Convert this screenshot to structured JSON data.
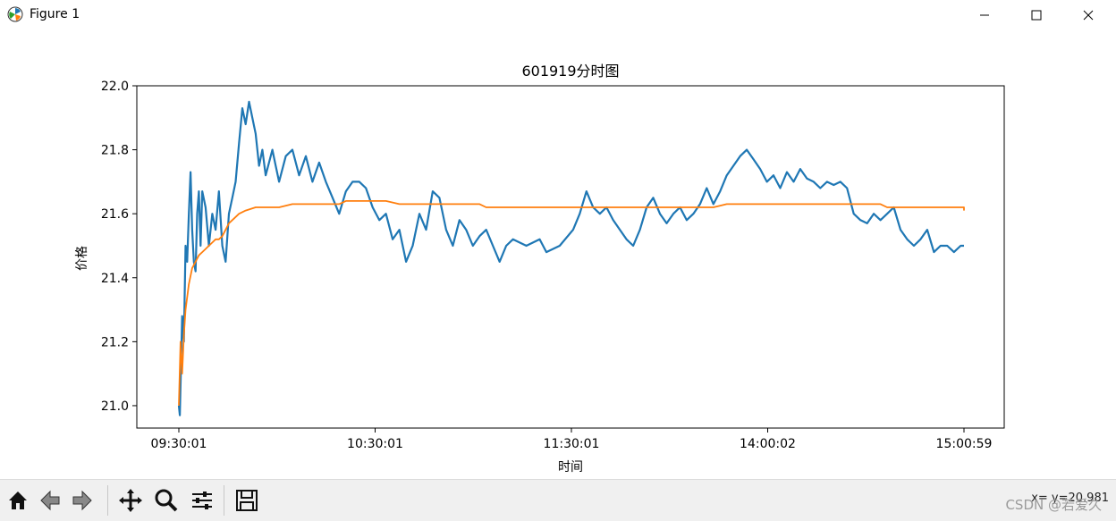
{
  "window": {
    "title": "Figure 1",
    "icon": "matplotlib-icon"
  },
  "window_controls": [
    "minimize-icon",
    "maximize-icon",
    "close-icon"
  ],
  "toolbar": {
    "buttons": [
      "home-icon",
      "back-icon",
      "forward-icon",
      "pan-icon",
      "zoom-icon",
      "configure-subplots-icon",
      "save-icon"
    ],
    "coordinate_readout": "x=      y=20.981"
  },
  "watermark": "CSDN @若爱久",
  "colors": {
    "series1": "#1f77b4",
    "series2": "#ff7f0e",
    "toolbar_bg": "#f0f0f0"
  },
  "chart_data": {
    "type": "line",
    "title": "601919分时图",
    "xlabel": "时间",
    "ylabel": "价格",
    "x_ticks": [
      "09:30:01",
      "10:30:01",
      "11:30:01",
      "14:00:02",
      "15:00:59"
    ],
    "y_ticks": [
      "21.0",
      "21.2",
      "21.4",
      "21.6",
      "21.8",
      "22.0"
    ],
    "ylim": [
      20.93,
      22.0
    ],
    "grid": false,
    "legend": "none",
    "series": [
      {
        "points": [
          [
            0,
            21.0
          ],
          [
            0.3,
            20.97
          ],
          [
            0.6,
            21.1
          ],
          [
            1,
            21.28
          ],
          [
            1.5,
            21.2
          ],
          [
            2,
            21.5
          ],
          [
            2.5,
            21.45
          ],
          [
            3,
            21.6
          ],
          [
            3.5,
            21.73
          ],
          [
            4,
            21.55
          ],
          [
            4.5,
            21.45
          ],
          [
            5,
            21.42
          ],
          [
            5.5,
            21.6
          ],
          [
            6,
            21.67
          ],
          [
            6.5,
            21.5
          ],
          [
            7,
            21.67
          ],
          [
            8,
            21.62
          ],
          [
            9,
            21.5
          ],
          [
            10,
            21.6
          ],
          [
            11,
            21.55
          ],
          [
            12,
            21.67
          ],
          [
            13,
            21.5
          ],
          [
            14,
            21.45
          ],
          [
            15,
            21.6
          ],
          [
            16,
            21.65
          ],
          [
            17,
            21.7
          ],
          [
            18,
            21.82
          ],
          [
            19,
            21.93
          ],
          [
            20,
            21.88
          ],
          [
            21,
            21.95
          ],
          [
            22,
            21.9
          ],
          [
            23,
            21.85
          ],
          [
            24,
            21.75
          ],
          [
            25,
            21.8
          ],
          [
            26,
            21.72
          ],
          [
            28,
            21.8
          ],
          [
            29,
            21.75
          ],
          [
            30,
            21.7
          ],
          [
            32,
            21.78
          ],
          [
            34,
            21.8
          ],
          [
            36,
            21.72
          ],
          [
            38,
            21.78
          ],
          [
            40,
            21.7
          ],
          [
            42,
            21.76
          ],
          [
            44,
            21.7
          ],
          [
            46,
            21.65
          ],
          [
            48,
            21.6
          ],
          [
            50,
            21.67
          ],
          [
            52,
            21.7
          ],
          [
            54,
            21.7
          ],
          [
            56,
            21.68
          ],
          [
            58,
            21.62
          ],
          [
            60,
            21.58
          ],
          [
            62,
            21.6
          ],
          [
            64,
            21.52
          ],
          [
            66,
            21.55
          ],
          [
            68,
            21.45
          ],
          [
            70,
            21.5
          ],
          [
            72,
            21.6
          ],
          [
            74,
            21.55
          ],
          [
            76,
            21.67
          ],
          [
            78,
            21.65
          ],
          [
            80,
            21.55
          ],
          [
            82,
            21.5
          ],
          [
            84,
            21.58
          ],
          [
            86,
            21.55
          ],
          [
            88,
            21.5
          ],
          [
            90,
            21.53
          ],
          [
            92,
            21.55
          ],
          [
            94,
            21.5
          ],
          [
            96,
            21.45
          ],
          [
            98,
            21.5
          ],
          [
            100,
            21.52
          ],
          [
            104,
            21.5
          ],
          [
            108,
            21.52
          ],
          [
            110,
            21.48
          ],
          [
            114,
            21.5
          ],
          [
            118,
            21.55
          ],
          [
            120,
            21.6
          ],
          [
            122,
            21.67
          ],
          [
            124,
            21.62
          ],
          [
            126,
            21.6
          ],
          [
            128,
            21.62
          ],
          [
            130,
            21.58
          ],
          [
            132,
            21.55
          ],
          [
            134,
            21.52
          ],
          [
            136,
            21.5
          ],
          [
            138,
            21.55
          ],
          [
            140,
            21.62
          ],
          [
            142,
            21.65
          ],
          [
            144,
            21.6
          ],
          [
            146,
            21.57
          ],
          [
            148,
            21.6
          ],
          [
            150,
            21.62
          ],
          [
            152,
            21.58
          ],
          [
            154,
            21.6
          ],
          [
            156,
            21.63
          ],
          [
            158,
            21.68
          ],
          [
            160,
            21.63
          ],
          [
            162,
            21.67
          ],
          [
            164,
            21.72
          ],
          [
            166,
            21.75
          ],
          [
            168,
            21.78
          ],
          [
            170,
            21.8
          ],
          [
            172,
            21.77
          ],
          [
            174,
            21.74
          ],
          [
            176,
            21.7
          ],
          [
            178,
            21.72
          ],
          [
            180,
            21.68
          ],
          [
            182,
            21.73
          ],
          [
            184,
            21.7
          ],
          [
            186,
            21.74
          ],
          [
            188,
            21.71
          ],
          [
            190,
            21.7
          ],
          [
            192,
            21.68
          ],
          [
            194,
            21.7
          ],
          [
            196,
            21.69
          ],
          [
            198,
            21.7
          ],
          [
            200,
            21.68
          ],
          [
            202,
            21.6
          ],
          [
            204,
            21.58
          ],
          [
            206,
            21.57
          ],
          [
            208,
            21.6
          ],
          [
            210,
            21.58
          ],
          [
            212,
            21.6
          ],
          [
            214,
            21.62
          ],
          [
            216,
            21.55
          ],
          [
            218,
            21.52
          ],
          [
            220,
            21.5
          ],
          [
            222,
            21.52
          ],
          [
            224,
            21.55
          ],
          [
            226,
            21.48
          ],
          [
            228,
            21.5
          ],
          [
            230,
            21.5
          ],
          [
            232,
            21.48
          ],
          [
            234,
            21.5
          ],
          [
            235,
            21.5
          ]
        ]
      },
      {
        "points": [
          [
            0,
            21.0
          ],
          [
            0.5,
            21.2
          ],
          [
            1,
            21.1
          ],
          [
            1.5,
            21.22
          ],
          [
            2,
            21.3
          ],
          [
            3,
            21.38
          ],
          [
            4,
            21.43
          ],
          [
            5,
            21.45
          ],
          [
            6,
            21.47
          ],
          [
            7,
            21.48
          ],
          [
            8,
            21.49
          ],
          [
            9,
            21.5
          ],
          [
            10,
            21.51
          ],
          [
            11,
            21.52
          ],
          [
            12,
            21.52
          ],
          [
            13,
            21.53
          ],
          [
            14,
            21.55
          ],
          [
            15,
            21.57
          ],
          [
            16,
            21.58
          ],
          [
            17,
            21.59
          ],
          [
            18,
            21.6
          ],
          [
            20,
            21.61
          ],
          [
            23,
            21.62
          ],
          [
            30,
            21.62
          ],
          [
            34,
            21.63
          ],
          [
            48,
            21.63
          ],
          [
            50,
            21.64
          ],
          [
            62,
            21.64
          ],
          [
            66,
            21.63
          ],
          [
            90,
            21.63
          ],
          [
            92,
            21.62
          ],
          [
            160,
            21.62
          ],
          [
            164,
            21.63
          ],
          [
            210,
            21.63
          ],
          [
            212,
            21.62
          ],
          [
            235,
            21.62
          ],
          [
            235,
            21.61
          ]
        ]
      }
    ]
  }
}
